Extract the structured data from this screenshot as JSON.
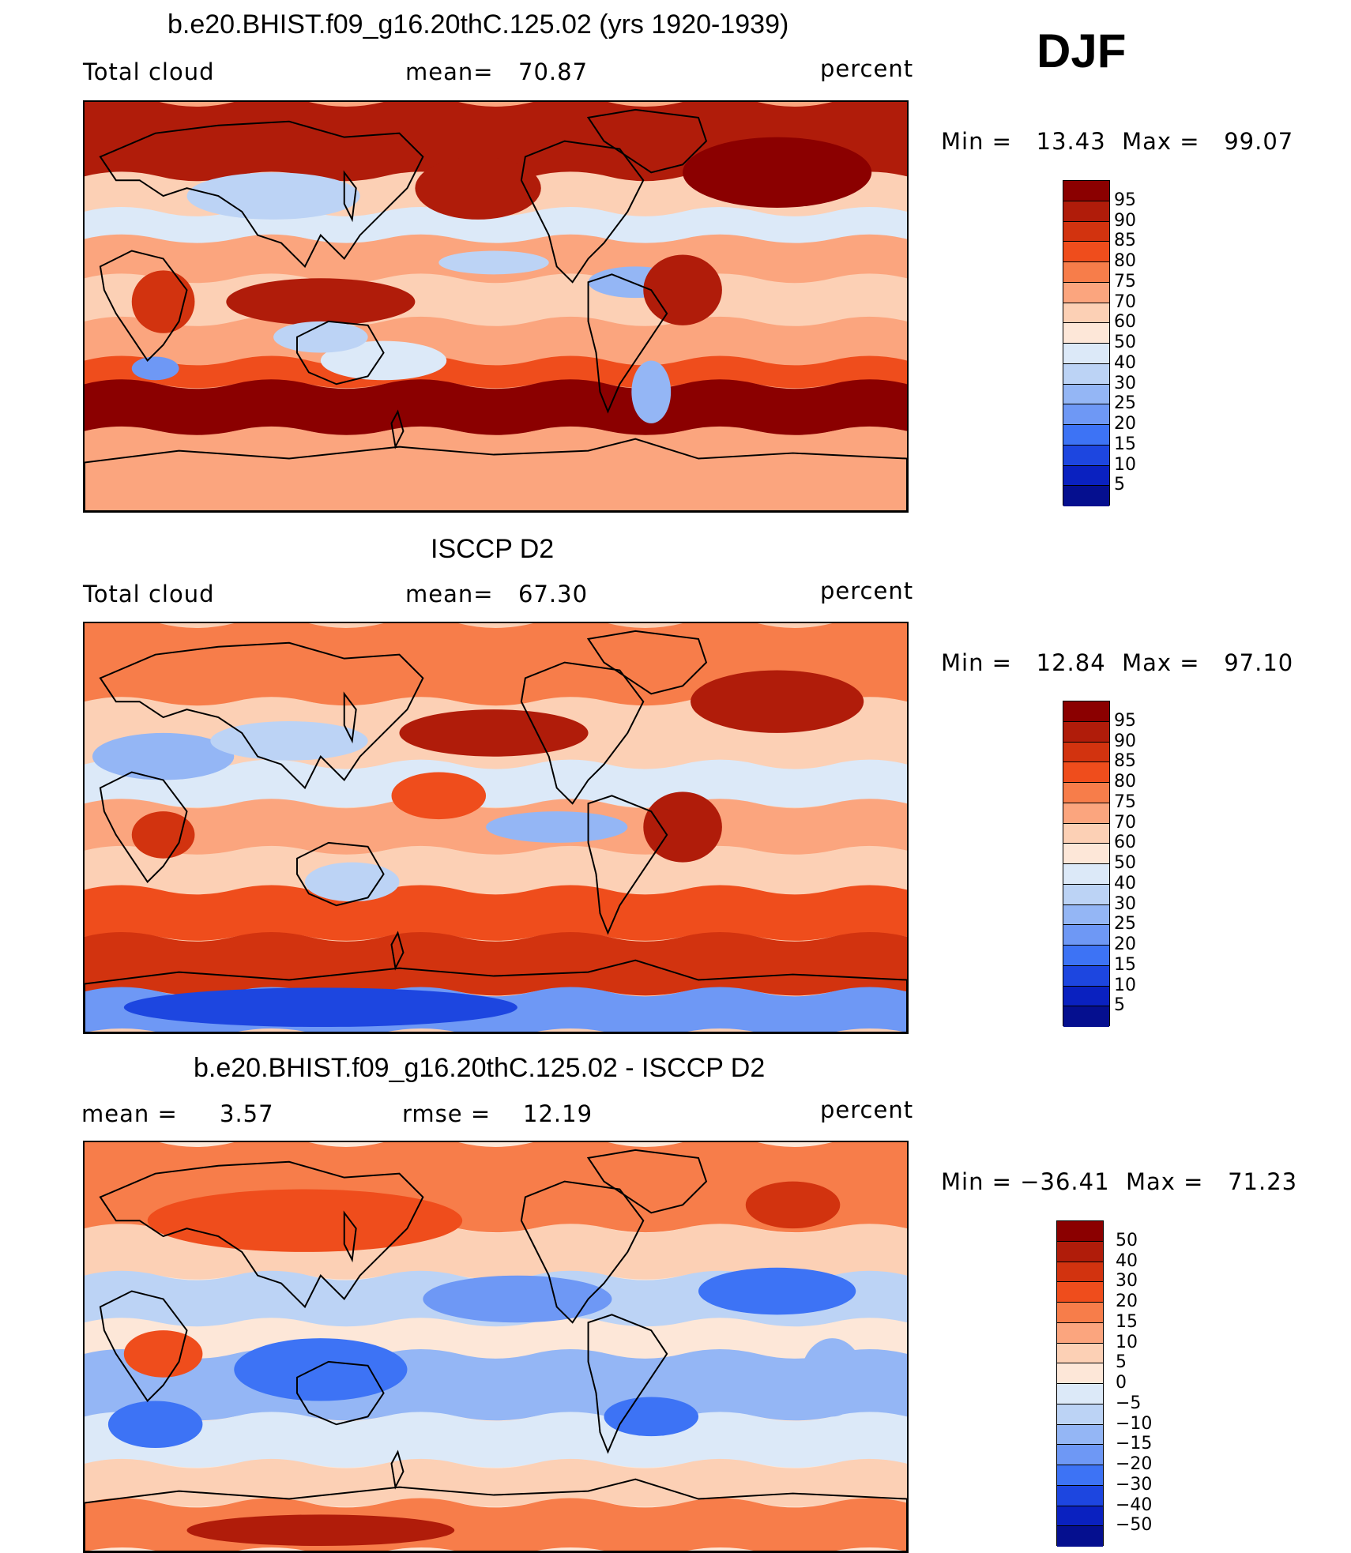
{
  "season": "DJF",
  "panels": [
    {
      "title": "b.e20.BHIST.f09_g16.20thC.125.02 (yrs 1920-1939)",
      "left_label": "Total cloud",
      "stat_label": "mean=",
      "stat_value": "70.87",
      "units": "percent",
      "minmax": "Min =   13.43  Max =   99.07",
      "colorbar": {
        "labels": [
          "95",
          "90",
          "85",
          "80",
          "75",
          "70",
          "60",
          "50",
          "40",
          "30",
          "25",
          "20",
          "15",
          "10",
          "5"
        ],
        "colors": [
          "#8b0000",
          "#b01c0a",
          "#d2330f",
          "#ef4d1c",
          "#f77d4a",
          "#fba57e",
          "#fcd0b5",
          "#fde7d8",
          "#dce9f8",
          "#bcd3f5",
          "#94b6f5",
          "#6e98f5",
          "#3d73f5",
          "#1d46e0",
          "#0a21c0",
          "#050f8f"
        ]
      },
      "map_style": "model"
    },
    {
      "title": "ISCCP D2",
      "left_label": "Total cloud",
      "stat_label": "mean=",
      "stat_value": "67.30",
      "units": "percent",
      "minmax": "Min =   12.84  Max =   97.10",
      "colorbar": {
        "labels": [
          "95",
          "90",
          "85",
          "80",
          "75",
          "70",
          "60",
          "50",
          "40",
          "30",
          "25",
          "20",
          "15",
          "10",
          "5"
        ],
        "colors": [
          "#8b0000",
          "#b01c0a",
          "#d2330f",
          "#ef4d1c",
          "#f77d4a",
          "#fba57e",
          "#fcd0b5",
          "#fde7d8",
          "#dce9f8",
          "#bcd3f5",
          "#94b6f5",
          "#6e98f5",
          "#3d73f5",
          "#1d46e0",
          "#0a21c0",
          "#050f8f"
        ]
      },
      "map_style": "obs"
    },
    {
      "title": "b.e20.BHIST.f09_g16.20thC.125.02 - ISCCP D2",
      "left_label": "mean =",
      "left_value": "3.57",
      "stat_label": "rmse =",
      "stat_value": "12.19",
      "units": "percent",
      "minmax": "Min = −36.41  Max =   71.23",
      "colorbar": {
        "labels": [
          "50",
          "40",
          "30",
          "20",
          "15",
          "10",
          "5",
          "0",
          "−5",
          "−10",
          "−15",
          "−20",
          "−30",
          "−40",
          "−50"
        ],
        "colors": [
          "#8b0000",
          "#b01c0a",
          "#d2330f",
          "#ef4d1c",
          "#f77d4a",
          "#fba57e",
          "#fcd0b5",
          "#fde7d8",
          "#dce9f8",
          "#bcd3f5",
          "#94b6f5",
          "#6e98f5",
          "#3d73f5",
          "#1d46e0",
          "#0a21c0",
          "#050f8f"
        ]
      },
      "map_style": "diff"
    }
  ]
}
